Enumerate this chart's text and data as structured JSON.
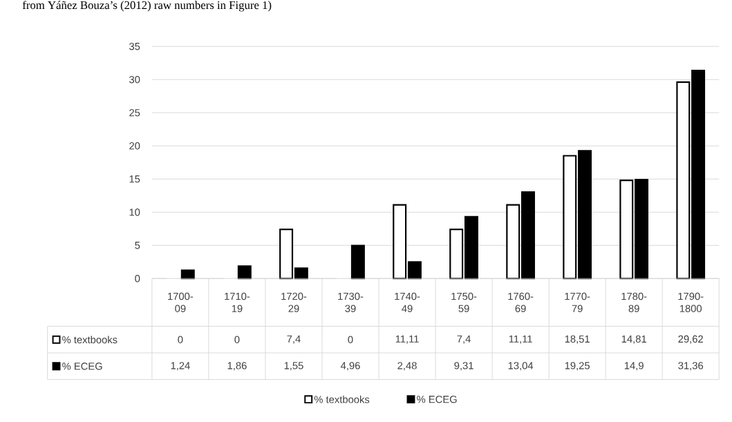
{
  "chart_data": {
    "type": "bar",
    "annotations": [
      "from Yáñez Bouza’s (2012) raw numbers in Figure 1)"
    ],
    "categories": [
      "1700-09",
      "1710-19",
      "1720-29",
      "1730-39",
      "1740-49",
      "1750-59",
      "1760-69",
      "1770-79",
      "1780-89",
      "1790-1800"
    ],
    "series": [
      {
        "name": "% textbooks",
        "color": "#ffffff",
        "values": [
          0,
          0,
          7.4,
          0,
          11.11,
          7.4,
          11.11,
          18.51,
          14.81,
          29.62
        ],
        "value_labels": [
          "0",
          "0",
          "7,4",
          "0",
          "11,11",
          "7,4",
          "11,11",
          "18,51",
          "14,81",
          "29,62"
        ]
      },
      {
        "name": "% ECEG",
        "color": "#000000",
        "values": [
          1.24,
          1.86,
          1.55,
          4.96,
          2.48,
          9.31,
          13.04,
          19.25,
          14.9,
          31.36
        ],
        "value_labels": [
          "1,24",
          "1,86",
          "1,55",
          "4,96",
          "2,48",
          "9,31",
          "13,04",
          "19,25",
          "14,9",
          "31,36"
        ]
      }
    ],
    "ylim": [
      0,
      35
    ],
    "yticks": [
      0,
      5,
      10,
      15,
      20,
      25,
      30,
      35
    ],
    "grid": "y",
    "legend": "bottom"
  }
}
